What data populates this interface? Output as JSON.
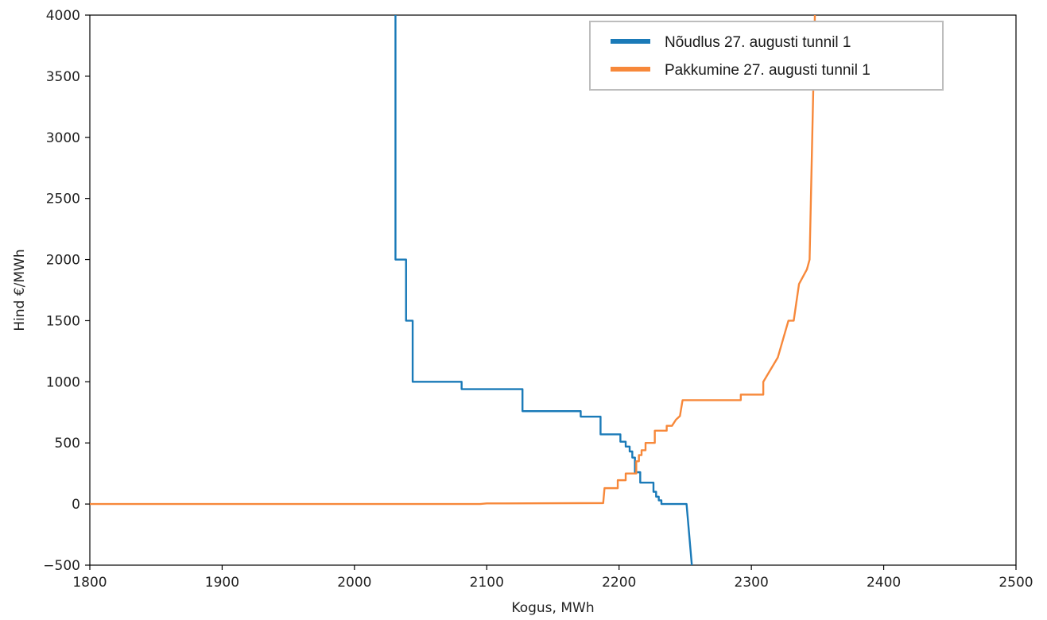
{
  "chart_data": {
    "type": "line",
    "title": "",
    "xlabel": "Kogus, MWh",
    "ylabel": "Hind €/MWh",
    "xlim": [
      1800,
      2500
    ],
    "ylim": [
      -500,
      4000
    ],
    "xticks": [
      1800,
      1900,
      2000,
      2100,
      2200,
      2300,
      2400,
      2500
    ],
    "yticks": [
      -500,
      0,
      500,
      1000,
      1500,
      2000,
      2500,
      3000,
      3500,
      4000
    ],
    "grid": false,
    "legend_position": "top-right",
    "series": [
      {
        "name": "Nõudlus 27. augusti tunnil 1",
        "color": "#1a7ab8",
        "points": [
          [
            2031,
            4000
          ],
          [
            2031,
            2000
          ],
          [
            2039,
            2000
          ],
          [
            2039,
            1500
          ],
          [
            2044,
            1500
          ],
          [
            2044,
            1000
          ],
          [
            2081,
            1000
          ],
          [
            2081,
            940
          ],
          [
            2127,
            940
          ],
          [
            2127,
            760
          ],
          [
            2171,
            760
          ],
          [
            2171,
            715
          ],
          [
            2186,
            715
          ],
          [
            2186,
            570
          ],
          [
            2201,
            570
          ],
          [
            2201,
            510
          ],
          [
            2205,
            510
          ],
          [
            2205,
            470
          ],
          [
            2208,
            470
          ],
          [
            2208,
            430
          ],
          [
            2210,
            430
          ],
          [
            2210,
            380
          ],
          [
            2212,
            380
          ],
          [
            2212,
            260
          ],
          [
            2216,
            260
          ],
          [
            2216,
            175
          ],
          [
            2226,
            175
          ],
          [
            2226,
            100
          ],
          [
            2228,
            100
          ],
          [
            2228,
            60
          ],
          [
            2230,
            60
          ],
          [
            2230,
            30
          ],
          [
            2232,
            30
          ],
          [
            2232,
            0
          ],
          [
            2251,
            0
          ],
          [
            2255,
            -500
          ]
        ]
      },
      {
        "name": "Pakkumine 27. augusti tunnil 1",
        "color": "#f7883a",
        "points": [
          [
            1800,
            0
          ],
          [
            2095,
            0
          ],
          [
            2100,
            5
          ],
          [
            2188,
            8
          ],
          [
            2189,
            130
          ],
          [
            2199,
            130
          ],
          [
            2199,
            195
          ],
          [
            2205,
            195
          ],
          [
            2205,
            250
          ],
          [
            2213,
            250
          ],
          [
            2213,
            350
          ],
          [
            2215,
            350
          ],
          [
            2215,
            400
          ],
          [
            2217,
            400
          ],
          [
            2217,
            440
          ],
          [
            2220,
            440
          ],
          [
            2220,
            500
          ],
          [
            2227,
            500
          ],
          [
            2227,
            600
          ],
          [
            2236,
            600
          ],
          [
            2236,
            640
          ],
          [
            2240,
            640
          ],
          [
            2243,
            690
          ],
          [
            2246,
            720
          ],
          [
            2248,
            850
          ],
          [
            2292,
            850
          ],
          [
            2292,
            895
          ],
          [
            2309,
            895
          ],
          [
            2309,
            1000
          ],
          [
            2320,
            1200
          ],
          [
            2328,
            1500
          ],
          [
            2332,
            1500
          ],
          [
            2336,
            1800
          ],
          [
            2342,
            1920
          ],
          [
            2344,
            2000
          ],
          [
            2348,
            4000
          ]
        ]
      }
    ]
  }
}
